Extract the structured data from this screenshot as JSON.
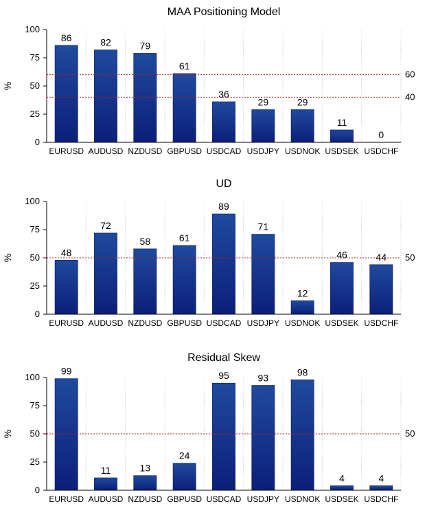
{
  "chart_data": [
    {
      "type": "bar",
      "title": "MAA Positioning Model",
      "ylabel": "%",
      "ylim": [
        0,
        100
      ],
      "yticks": [
        0,
        25,
        50,
        75,
        100
      ],
      "categories": [
        "EURUSD",
        "AUDUSD",
        "NZDUSD",
        "GBPUSD",
        "USDCAD",
        "USDJPY",
        "USDNOK",
        "USDSEK",
        "USDCHF"
      ],
      "values": [
        86,
        82,
        79,
        61,
        36,
        29,
        29,
        11,
        0
      ],
      "reference_lines": [
        60,
        40
      ],
      "grid": "vertical",
      "bar_color": "#1a3a8c",
      "ref_color": "#b22222"
    },
    {
      "type": "bar",
      "title": "UD",
      "ylabel": "%",
      "ylim": [
        0,
        100
      ],
      "yticks": [
        0,
        25,
        50,
        75,
        100
      ],
      "categories": [
        "EURUSD",
        "AUDUSD",
        "NZDUSD",
        "GBPUSD",
        "USDCAD",
        "USDJPY",
        "USDNOK",
        "USDSEK",
        "USDCHF"
      ],
      "values": [
        48,
        72,
        58,
        61,
        89,
        71,
        12,
        46,
        44
      ],
      "reference_lines": [
        50
      ],
      "grid": "vertical",
      "bar_color": "#1a3a8c",
      "ref_color": "#b22222"
    },
    {
      "type": "bar",
      "title": "Residual Skew",
      "ylabel": "%",
      "ylim": [
        0,
        100
      ],
      "yticks": [
        0,
        25,
        50,
        75,
        100
      ],
      "categories": [
        "EURUSD",
        "AUDUSD",
        "NZDUSD",
        "GBPUSD",
        "USDCAD",
        "USDJPY",
        "USDNOK",
        "USDSEK",
        "USDCHF"
      ],
      "values": [
        99,
        11,
        13,
        24,
        95,
        93,
        98,
        4,
        4
      ],
      "reference_lines": [
        50
      ],
      "grid": "vertical",
      "bar_color": "#1a3a8c",
      "ref_color": "#b22222"
    }
  ]
}
